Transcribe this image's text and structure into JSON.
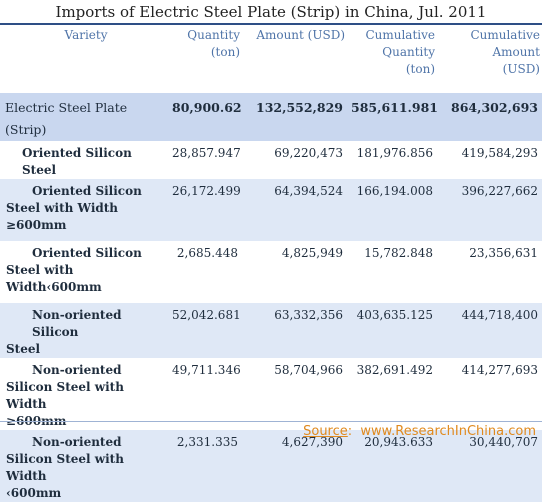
{
  "title": "Imports of Electric Steel Plate (Strip) in China, Jul. 2011",
  "columns": {
    "variety": "Variety",
    "quantity": [
      "Quantity",
      "(ton)"
    ],
    "amount": [
      "Amount (USD)"
    ],
    "cum_quantity": [
      "Cumulative",
      "Quantity",
      "(ton)"
    ],
    "cum_amount": [
      "Cumulative",
      "Amount",
      "(USD)"
    ]
  },
  "rows": [
    {
      "name": [
        "Electric Steel Plate (Strip)"
      ],
      "quantity": "80,900.628",
      "amount": "132,552,829",
      "cum_quantity": "585,611.981",
      "cum_amount": "864,302,693"
    },
    {
      "name": [
        "Oriented Silicon Steel"
      ],
      "quantity": "28,857.947",
      "amount": "69,220,473",
      "cum_quantity": "181,976.856",
      "cum_amount": "419,584,293"
    },
    {
      "name": [
        "Oriented Silicon",
        "Steel with Width",
        "≥600mm"
      ],
      "quantity": "26,172.499",
      "amount": "64,394,524",
      "cum_quantity": "166,194.008",
      "cum_amount": "396,227,662"
    },
    {
      "name": [
        "Oriented Silicon",
        "Steel with",
        "Width‹600mm"
      ],
      "quantity": "2,685.448",
      "amount": "4,825,949",
      "cum_quantity": "15,782.848",
      "cum_amount": "23,356,631"
    },
    {
      "name": [
        "Non-oriented  Silicon",
        "Steel"
      ],
      "quantity": "52,042.681",
      "amount": "63,332,356",
      "cum_quantity": "403,635.125",
      "cum_amount": "444,718,400"
    },
    {
      "name": [
        "Non-oriented",
        "Silicon Steel with Width",
        "≥600mm"
      ],
      "quantity": "49,711.346",
      "amount": "58,704,966",
      "cum_quantity": "382,691.492",
      "cum_amount": "414,277,693"
    },
    {
      "name": [
        "Non-oriented",
        "Silicon Steel with Width",
        "‹600mm"
      ],
      "quantity": "2,331.335",
      "amount": "4,627,390",
      "cum_quantity": "20,943.633",
      "cum_amount": "30,440,707"
    }
  ],
  "source": {
    "label": "Source",
    "separator": ":",
    "text": "  www.ResearchInChina.com"
  }
}
